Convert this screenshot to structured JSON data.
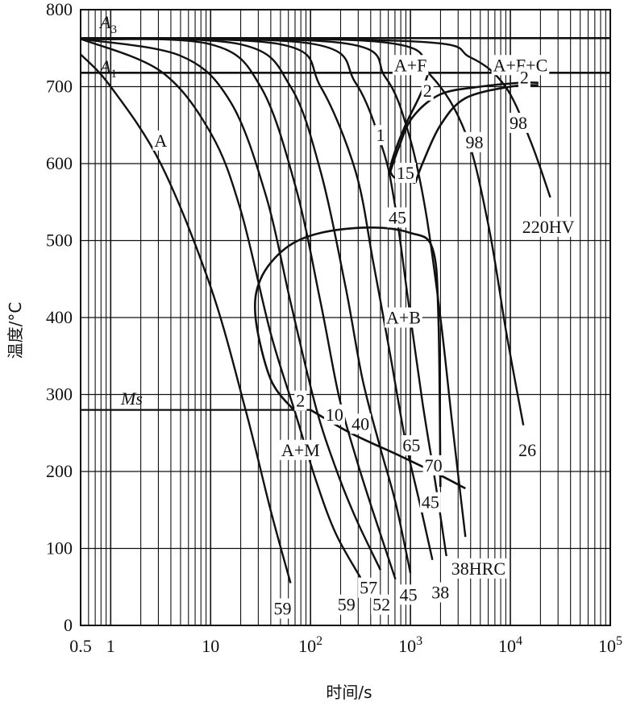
{
  "diagram": {
    "type": "cct-diagram",
    "ylabel": "温度/°C",
    "xlabel": "时间/s",
    "y_ticks": [
      "0",
      "100",
      "200",
      "300",
      "400",
      "500",
      "600",
      "700",
      "800"
    ],
    "x_ticks": [
      {
        "base": "0.5",
        "exp": ""
      },
      {
        "base": "1",
        "exp": ""
      },
      {
        "base": "10",
        "exp": ""
      },
      {
        "base": "10",
        "exp": "2"
      },
      {
        "base": "10",
        "exp": "3"
      },
      {
        "base": "10",
        "exp": "4"
      },
      {
        "base": "10",
        "exp": "5"
      }
    ],
    "critical_lines": {
      "A3": {
        "letter": "A",
        "sub": "3",
        "temp": 763
      },
      "A1": {
        "letter": "A",
        "sub": "1",
        "temp": 718
      },
      "Ms": {
        "label": "Ms",
        "temp": 280
      }
    },
    "regions": [
      {
        "label": "A",
        "t": 0.5,
        "T": 630
      },
      {
        "label": "A+F",
        "t": 3.0,
        "T": 728
      },
      {
        "label": "A+F+C",
        "t": 4.1,
        "T": 728
      },
      {
        "label": "A+B",
        "t": 2.93,
        "T": 400
      },
      {
        "label": "A+M",
        "t": 1.9,
        "T": 228
      }
    ],
    "labels": [
      {
        "text": "1",
        "t": 2.7,
        "T": 637
      },
      {
        "text": "2",
        "t": 3.17,
        "T": 695
      },
      {
        "text": "15",
        "t": 2.95,
        "T": 588
      },
      {
        "text": "45",
        "t": 2.87,
        "T": 530
      },
      {
        "text": "98",
        "t": 3.64,
        "T": 628
      },
      {
        "text": "2",
        "t": 4.14,
        "T": 712
      },
      {
        "text": "98",
        "t": 4.08,
        "T": 653
      },
      {
        "text": "220HV",
        "t": 4.38,
        "T": 518
      },
      {
        "text": "2",
        "t": 1.9,
        "T": 292
      },
      {
        "text": "10",
        "t": 2.24,
        "T": 274
      },
      {
        "text": "40",
        "t": 2.5,
        "T": 262
      },
      {
        "text": "65",
        "t": 3.01,
        "T": 234
      },
      {
        "text": "70",
        "t": 3.23,
        "T": 208
      },
      {
        "text": "26",
        "t": 4.17,
        "T": 228
      },
      {
        "text": "45",
        "t": 3.2,
        "T": 160
      },
      {
        "text": "38HRC",
        "t": 3.68,
        "T": 74
      },
      {
        "text": "59",
        "t": 1.72,
        "T": 22
      },
      {
        "text": "59",
        "t": 2.36,
        "T": 27
      },
      {
        "text": "57",
        "t": 2.58,
        "T": 49
      },
      {
        "text": "52",
        "t": 2.71,
        "T": 27
      },
      {
        "text": "45",
        "t": 2.98,
        "T": 40
      },
      {
        "text": "38",
        "t": 3.3,
        "T": 43
      }
    ],
    "cooling_curves": [
      {
        "name": "59a",
        "pts": [
          [
            -0.3,
            742
          ],
          [
            0.0,
            700
          ],
          [
            0.5,
            600
          ],
          [
            1.0,
            440
          ],
          [
            1.35,
            280
          ],
          [
            1.6,
            150
          ],
          [
            1.8,
            55
          ]
        ]
      },
      {
        "name": "59b",
        "pts": [
          [
            -0.3,
            762
          ],
          [
            0.5,
            720
          ],
          [
            1.0,
            640
          ],
          [
            1.3,
            540
          ],
          [
            1.6,
            380
          ],
          [
            1.85,
            275
          ],
          [
            2.05,
            190
          ],
          [
            2.25,
            120
          ],
          [
            2.5,
            62
          ]
        ]
      },
      {
        "name": "57",
        "pts": [
          [
            -0.3,
            762
          ],
          [
            0.7,
            740
          ],
          [
            1.2,
            680
          ],
          [
            1.55,
            560
          ],
          [
            1.8,
            420
          ],
          [
            2.05,
            285
          ],
          [
            2.25,
            205
          ],
          [
            2.45,
            140
          ],
          [
            2.7,
            72
          ]
        ]
      },
      {
        "name": "52",
        "pts": [
          [
            -0.3,
            762
          ],
          [
            1.0,
            755
          ],
          [
            1.5,
            700
          ],
          [
            1.85,
            570
          ],
          [
            2.1,
            420
          ],
          [
            2.28,
            300
          ],
          [
            2.45,
            220
          ],
          [
            2.62,
            150
          ],
          [
            2.85,
            60
          ]
        ]
      },
      {
        "name": "45a",
        "pts": [
          [
            -0.3,
            762
          ],
          [
            1.3,
            755
          ],
          [
            1.8,
            700
          ],
          [
            2.1,
            590
          ],
          [
            2.35,
            440
          ],
          [
            2.52,
            320
          ],
          [
            2.7,
            230
          ],
          [
            2.85,
            160
          ],
          [
            3.0,
            68
          ]
        ]
      },
      {
        "name": "45b",
        "pts": [
          [
            -0.3,
            762
          ],
          [
            1.7,
            755
          ],
          [
            2.1,
            700
          ],
          [
            2.45,
            590
          ],
          [
            2.63,
            470
          ],
          [
            2.8,
            350
          ],
          [
            2.95,
            240
          ],
          [
            3.1,
            155
          ],
          [
            3.22,
            85
          ]
        ]
      },
      {
        "name": "38",
        "pts": [
          [
            -0.3,
            762
          ],
          [
            2.0,
            756
          ],
          [
            2.45,
            705
          ],
          [
            2.72,
            620
          ],
          [
            2.84,
            550
          ],
          [
            2.98,
            420
          ],
          [
            3.12,
            290
          ],
          [
            3.25,
            185
          ],
          [
            3.36,
            90
          ]
        ]
      },
      {
        "name": "38HRC",
        "pts": [
          [
            -0.3,
            762
          ],
          [
            2.3,
            757
          ],
          [
            2.75,
            712
          ],
          [
            2.98,
            640
          ],
          [
            3.15,
            540
          ],
          [
            3.3,
            400
          ],
          [
            3.42,
            260
          ],
          [
            3.55,
            115
          ]
        ]
      },
      {
        "name": "26",
        "pts": [
          [
            -0.3,
            762
          ],
          [
            2.7,
            758
          ],
          [
            3.2,
            715
          ],
          [
            3.55,
            640
          ],
          [
            3.78,
            520
          ],
          [
            3.96,
            380
          ],
          [
            4.13,
            260
          ]
        ]
      },
      {
        "name": "220HV",
        "pts": [
          [
            -0.3,
            762
          ],
          [
            3.0,
            759
          ],
          [
            3.6,
            738
          ],
          [
            3.95,
            700
          ],
          [
            4.2,
            630
          ],
          [
            4.4,
            556
          ]
        ]
      }
    ],
    "transformation_curves": [
      {
        "name": "ferrite-start",
        "pts": [
          [
            3.18,
            718
          ],
          [
            3.1,
            690
          ],
          [
            2.95,
            650
          ],
          [
            2.83,
            610
          ],
          [
            2.8,
            590
          ],
          [
            2.86,
            580
          ],
          [
            2.95,
            578
          ],
          [
            3.05,
            575
          ]
        ]
      },
      {
        "name": "ferrite-finish",
        "pts": [
          [
            2.8,
            590
          ],
          [
            2.88,
            620
          ],
          [
            3.02,
            660
          ],
          [
            3.3,
            690
          ],
          [
            3.7,
            700
          ],
          [
            4.1,
            705
          ],
          [
            4.28,
            705
          ]
        ]
      },
      {
        "name": "pearlite-start",
        "pts": [
          [
            3.05,
            575
          ],
          [
            3.12,
            600
          ],
          [
            3.3,
            650
          ],
          [
            3.55,
            685
          ],
          [
            4.0,
            700
          ],
          [
            4.28,
            702
          ]
        ]
      },
      {
        "name": "bainite-envelope",
        "pts": [
          [
            1.83,
            280
          ],
          [
            1.6,
            320
          ],
          [
            1.45,
            400
          ],
          [
            1.5,
            450
          ],
          [
            1.75,
            490
          ],
          [
            2.1,
            510
          ],
          [
            2.6,
            517
          ],
          [
            3.0,
            510
          ],
          [
            3.22,
            490
          ],
          [
            3.28,
            400
          ],
          [
            3.3,
            180
          ]
        ]
      },
      {
        "name": "ms-curve",
        "pts": [
          [
            2.0,
            280
          ],
          [
            2.4,
            250
          ],
          [
            2.9,
            220
          ],
          [
            3.3,
            195
          ],
          [
            3.55,
            178
          ]
        ]
      }
    ]
  }
}
